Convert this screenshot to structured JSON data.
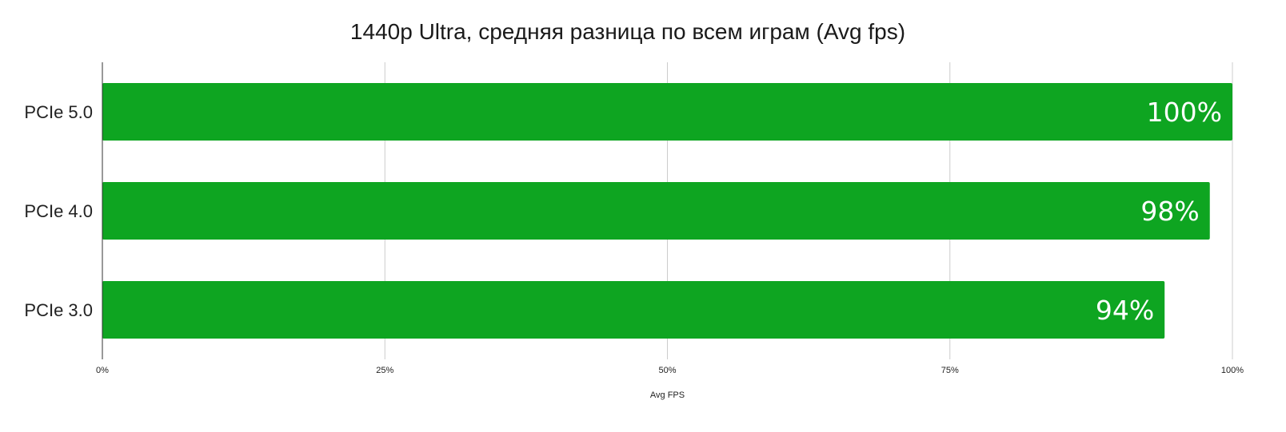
{
  "chart_data": {
    "type": "bar",
    "orientation": "horizontal",
    "title": "1440p Ultra, средняя разница по всем играм (Avg fps)",
    "xlabel": "Avg FPS",
    "ylabel": "",
    "categories": [
      "PCIe 5.0",
      "PCIe 4.0",
      "PCIe 3.0"
    ],
    "values": [
      100,
      98,
      94
    ],
    "data_labels": [
      "100%",
      "98%",
      "94%"
    ],
    "xlim": [
      0,
      100
    ],
    "x_ticks": [
      0,
      25,
      50,
      75,
      100
    ],
    "x_tick_labels": [
      "0%",
      "25%",
      "50%",
      "75%",
      "100%"
    ],
    "grid": "vertical",
    "legend": "none",
    "bar_color": "#0ea521",
    "gridline_color": "#cccccc",
    "axis_color": "#333333"
  }
}
